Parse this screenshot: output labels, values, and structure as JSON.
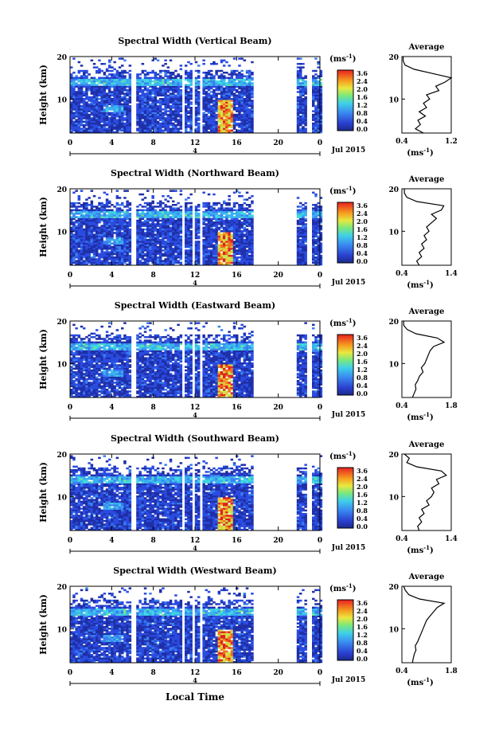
{
  "chart_data": {
    "type": "heatmap",
    "unit_label": "(ms",
    "unit_exp": "-1",
    "colorbar_ticks": [
      "3.6",
      "2.4",
      "2.0",
      "1.6",
      "1.2",
      "0.8",
      "0.4",
      "0.0"
    ],
    "x_ticks": [
      "0",
      "4",
      "8",
      "12",
      "16",
      "20",
      "0"
    ],
    "x_values": [
      0,
      4,
      8,
      12,
      16,
      20,
      24
    ],
    "day_marker": "4",
    "date_label": "Jul 2015",
    "xlabel": "Local Time",
    "ylabel": "Height (km)",
    "y_ticks": [
      "20",
      "10"
    ],
    "y_values": [
      20,
      10
    ],
    "ylim": [
      2,
      20
    ],
    "xlim": [
      0,
      24
    ],
    "data_gaps_hours": [
      [
        5.8,
        6.2
      ],
      [
        10.6,
        10.9
      ],
      [
        11.6,
        11.9
      ],
      [
        12.3,
        12.5
      ],
      [
        17.6,
        21.7
      ],
      [
        22.7,
        23.0
      ]
    ],
    "avg_title": "Average",
    "avg_xlabel": "(ms",
    "avg_xlabel_exp": "-1",
    "panels": [
      {
        "title": "Spectral Width (Vertical Beam)",
        "avg_xticks": [
          "0.4",
          "1.2"
        ],
        "avg_xlim": [
          0.4,
          1.2
        ],
        "avg_profile_heights": [
          2,
          3,
          4,
          5,
          6,
          7,
          8,
          9,
          10,
          11,
          12,
          13,
          14,
          15,
          16,
          17,
          18,
          19,
          20
        ],
        "avg_profile_values": [
          0.75,
          0.62,
          0.7,
          0.66,
          0.78,
          0.68,
          0.8,
          0.75,
          0.85,
          0.8,
          1.0,
          0.95,
          1.1,
          1.2,
          0.9,
          0.6,
          0.45,
          0.42,
          0.42
        ]
      },
      {
        "title": "Spectral Width (Northward Beam)",
        "avg_xticks": [
          "0.4",
          "1.4"
        ],
        "avg_xlim": [
          0.4,
          1.4
        ],
        "avg_profile_heights": [
          2,
          3,
          4,
          5,
          6,
          7,
          8,
          9,
          10,
          11,
          12,
          13,
          14,
          15,
          16,
          17,
          18,
          19,
          20
        ],
        "avg_profile_values": [
          0.75,
          0.7,
          0.8,
          0.75,
          0.85,
          0.8,
          0.9,
          0.85,
          0.95,
          0.9,
          1.0,
          1.1,
          1.0,
          1.2,
          1.25,
          0.7,
          0.5,
          0.45,
          0.45
        ]
      },
      {
        "title": "Spectral Width (Eastward Beam)",
        "avg_xticks": [
          "0.4",
          "1.8"
        ],
        "avg_xlim": [
          0.4,
          1.8
        ],
        "avg_profile_heights": [
          2,
          3,
          4,
          5,
          6,
          7,
          8,
          9,
          10,
          11,
          12,
          13,
          14,
          15,
          16,
          17,
          18,
          19,
          20
        ],
        "avg_profile_values": [
          0.7,
          0.75,
          0.8,
          0.78,
          0.85,
          0.9,
          1.0,
          0.95,
          1.05,
          1.1,
          1.15,
          1.2,
          1.3,
          1.6,
          1.4,
          0.8,
          0.55,
          0.45,
          0.45
        ]
      },
      {
        "title": "Spectral Width (Southward Beam)",
        "avg_xticks": [
          "0.4",
          "1.4"
        ],
        "avg_xlim": [
          0.4,
          1.4
        ],
        "avg_profile_heights": [
          2,
          3,
          4,
          5,
          6,
          7,
          8,
          9,
          10,
          11,
          12,
          13,
          14,
          15,
          16,
          17,
          18,
          19,
          20
        ],
        "avg_profile_values": [
          0.75,
          0.72,
          0.8,
          0.75,
          0.85,
          0.8,
          0.95,
          0.9,
          1.0,
          1.05,
          1.0,
          1.15,
          1.1,
          1.3,
          1.2,
          0.7,
          0.5,
          0.55,
          0.45
        ]
      },
      {
        "title": "Spectral Width (Westward Beam)",
        "avg_xticks": [
          "0.4",
          "1.8"
        ],
        "avg_xlim": [
          0.4,
          1.8
        ],
        "avg_profile_heights": [
          2,
          3,
          4,
          5,
          6,
          7,
          8,
          9,
          10,
          11,
          12,
          13,
          14,
          15,
          16,
          17,
          18,
          19,
          20
        ],
        "avg_profile_values": [
          0.7,
          0.72,
          0.75,
          0.8,
          0.78,
          0.85,
          0.9,
          0.95,
          1.0,
          1.05,
          1.1,
          1.2,
          1.3,
          1.4,
          1.6,
          0.9,
          0.6,
          0.5,
          0.45
        ]
      }
    ]
  }
}
